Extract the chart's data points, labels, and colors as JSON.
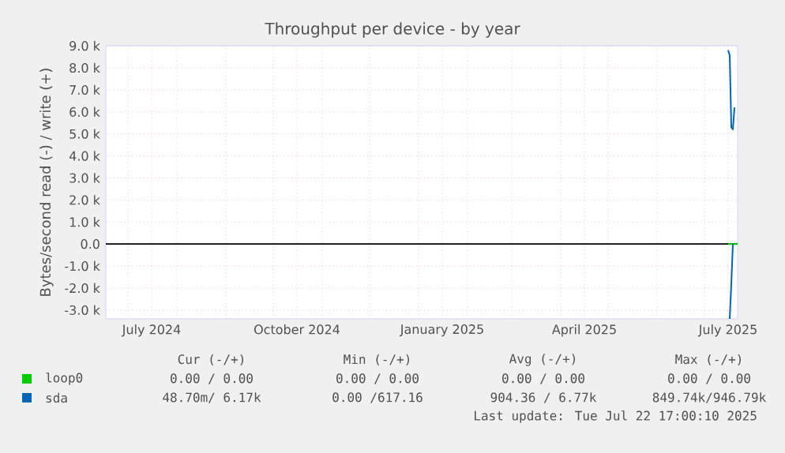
{
  "chart_data": {
    "type": "line",
    "title": "Throughput per device - by year",
    "ylabel": "Bytes/second read (-) / write (+)",
    "xlim": [
      "2024-06-17",
      "2025-07-22"
    ],
    "xticks": [
      {
        "value": "2024-07-01",
        "label": null
      },
      {
        "value": "2024-07-16",
        "label": "July 2024"
      },
      {
        "value": "2024-08-01",
        "label": null
      },
      {
        "value": "2024-09-01",
        "label": null
      },
      {
        "value": "2024-10-01",
        "label": null
      },
      {
        "value": "2024-10-16",
        "label": "October 2024"
      },
      {
        "value": "2024-11-01",
        "label": null
      },
      {
        "value": "2024-12-01",
        "label": null
      },
      {
        "value": "2025-01-01",
        "label": null
      },
      {
        "value": "2025-01-16",
        "label": "January 2025"
      },
      {
        "value": "2025-02-01",
        "label": null
      },
      {
        "value": "2025-03-01",
        "label": null
      },
      {
        "value": "2025-04-01",
        "label": null
      },
      {
        "value": "2025-04-16",
        "label": "April 2025"
      },
      {
        "value": "2025-05-01",
        "label": null
      },
      {
        "value": "2025-06-01",
        "label": null
      },
      {
        "value": "2025-07-01",
        "label": null
      },
      {
        "value": "2025-07-16",
        "label": "July 2025"
      }
    ],
    "ylim": [
      -3400,
      9000
    ],
    "yticks": [
      {
        "value": -3000,
        "label": "-3.0 k"
      },
      {
        "value": -2000,
        "label": "-2.0 k"
      },
      {
        "value": -1000,
        "label": "-1.0 k"
      },
      {
        "value": 0,
        "label": "0.0"
      },
      {
        "value": 1000,
        "label": "1.0 k"
      },
      {
        "value": 2000,
        "label": "2.0 k"
      },
      {
        "value": 3000,
        "label": "3.0 k"
      },
      {
        "value": 4000,
        "label": "4.0 k"
      },
      {
        "value": 5000,
        "label": "5.0 k"
      },
      {
        "value": 6000,
        "label": "6.0 k"
      },
      {
        "value": 7000,
        "label": "7.0 k"
      },
      {
        "value": 8000,
        "label": "8.0 k"
      },
      {
        "value": 9000,
        "label": "9.0 k"
      }
    ],
    "grid": true,
    "legend": "bottom",
    "ref_lines": [
      {
        "axis": "y",
        "value": 0,
        "color": "#000000"
      }
    ],
    "series": [
      {
        "name": "loop0",
        "color": "#00cc00",
        "x": [
          "2025-07-16",
          "2025-07-22"
        ],
        "values": [
          0,
          0
        ]
      },
      {
        "name": "sda",
        "color": "#0066b3",
        "x": [
          "2025-07-16",
          "2025-07-17",
          "2025-07-18",
          "2025-07-19",
          "2025-07-20"
        ],
        "values": [
          8800,
          8560,
          5300,
          5200,
          6200
        ]
      },
      {
        "color": "#0066b3",
        "x": [
          "2025-07-17",
          "2025-07-18",
          "2025-07-19"
        ],
        "values": [
          -3400,
          -1800,
          0
        ]
      }
    ],
    "annotations": [
      "Cur (-/+)",
      "Min (-/+)",
      "Avg (-/+)",
      "Max (-/+)",
      "0.00 /  0.00",
      "0.00 /  0.00",
      "0.00 /  0.00",
      "0.00 /  0.00",
      "48.70m/  6.17k",
      "0.00 /617.16",
      "904.36 /  6.77k",
      "849.74k/946.79k",
      "Last update: Tue Jul 22 17:00:10 2025"
    ]
  }
}
